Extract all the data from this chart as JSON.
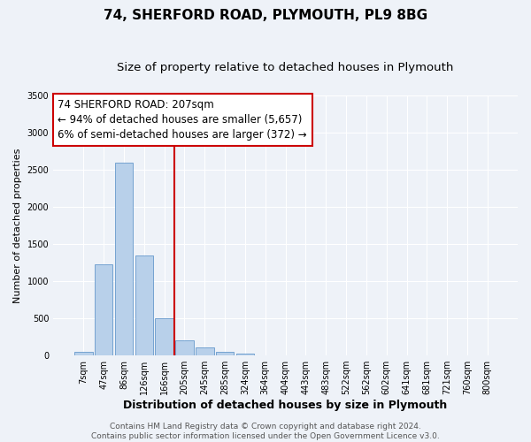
{
  "title": "74, SHERFORD ROAD, PLYMOUTH, PL9 8BG",
  "subtitle": "Size of property relative to detached houses in Plymouth",
  "xlabel": "Distribution of detached houses by size in Plymouth",
  "ylabel": "Number of detached properties",
  "bar_labels": [
    "7sqm",
    "47sqm",
    "86sqm",
    "126sqm",
    "166sqm",
    "205sqm",
    "245sqm",
    "285sqm",
    "324sqm",
    "364sqm",
    "404sqm",
    "443sqm",
    "483sqm",
    "522sqm",
    "562sqm",
    "602sqm",
    "641sqm",
    "681sqm",
    "721sqm",
    "760sqm",
    "800sqm"
  ],
  "bar_values": [
    50,
    1230,
    2590,
    1350,
    500,
    200,
    110,
    45,
    25,
    0,
    0,
    0,
    0,
    0,
    0,
    0,
    0,
    0,
    0,
    0,
    0
  ],
  "bar_color": "#b8d0ea",
  "bar_edge_color": "#6699cc",
  "vline_index": 5,
  "vline_color": "#cc0000",
  "annotation_line1": "74 SHERFORD ROAD: 207sqm",
  "annotation_line2": "← 94% of detached houses are smaller (5,657)",
  "annotation_line3": "6% of semi-detached houses are larger (372) →",
  "annotation_box_facecolor": "#ffffff",
  "annotation_box_edgecolor": "#cc0000",
  "ylim": [
    0,
    3500
  ],
  "footer_line1": "Contains HM Land Registry data © Crown copyright and database right 2024.",
  "footer_line2": "Contains public sector information licensed under the Open Government Licence v3.0.",
  "background_color": "#eef2f8",
  "grid_color": "#ffffff",
  "title_fontsize": 11,
  "subtitle_fontsize": 9.5,
  "ylabel_fontsize": 8,
  "xlabel_fontsize": 9,
  "tick_fontsize": 7,
  "annotation_fontsize": 8.5,
  "footer_fontsize": 6.5
}
